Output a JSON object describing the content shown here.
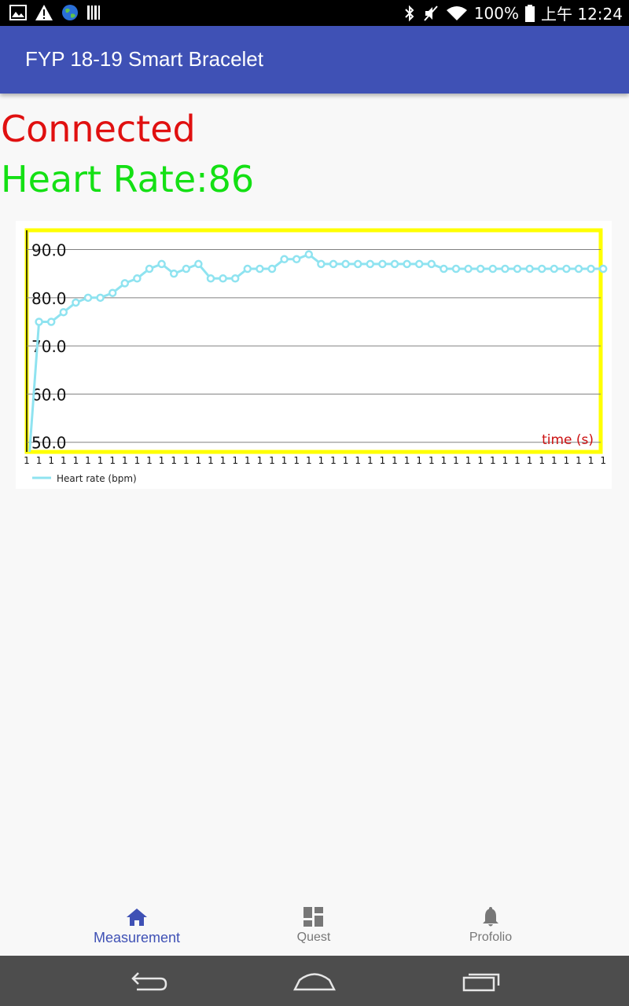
{
  "status_bar": {
    "left_icons": [
      "image-icon",
      "warning-icon",
      "earth-icon",
      "barcode-icon"
    ],
    "right_icons": [
      "bluetooth-icon",
      "mute-icon",
      "wifi-icon",
      "battery-icon"
    ],
    "battery": "100%",
    "time": "上午 12:24"
  },
  "app_bar": {
    "title": "FYP 18-19 Smart Bracelet"
  },
  "main": {
    "connection_status": "Connected",
    "heart_rate_text": "Heart Rate:86",
    "colors": {
      "connected": "#e01010",
      "heart_rate": "#14e014"
    }
  },
  "chart_data": {
    "type": "line",
    "series": [
      {
        "name": "Heart rate (bpm)",
        "color": "#8fe3f0",
        "values": [
          40,
          75,
          75,
          77,
          79,
          80,
          80,
          81,
          83,
          84,
          86,
          87,
          85,
          86,
          87,
          84,
          84,
          84,
          86,
          86,
          86,
          88,
          88,
          89,
          87,
          87,
          87,
          87,
          87,
          87,
          87,
          87,
          87,
          87,
          86,
          86,
          86,
          86,
          86,
          86,
          86,
          86,
          86,
          86,
          86,
          86,
          86,
          86
        ]
      }
    ],
    "y_ticks": [
      "50.0",
      "60.0",
      "70.0",
      "80.0",
      "90.0"
    ],
    "ylim": [
      48,
      94
    ],
    "x_tick_label": "1",
    "x_tick_count": 48,
    "xlabel": "time (s)",
    "ylabel": "",
    "grid": true,
    "legend_position": "bottom-left",
    "frame_color": "#ffff00"
  },
  "bottom_nav": {
    "items": [
      {
        "label": "Measurement",
        "icon": "home-icon",
        "active": true
      },
      {
        "label": "Quest",
        "icon": "dashboard-icon",
        "active": false
      },
      {
        "label": "Profolio",
        "icon": "bell-icon",
        "active": false
      }
    ]
  },
  "system_nav": {
    "buttons": [
      "back-icon",
      "home-outline-icon",
      "recents-icon"
    ]
  }
}
